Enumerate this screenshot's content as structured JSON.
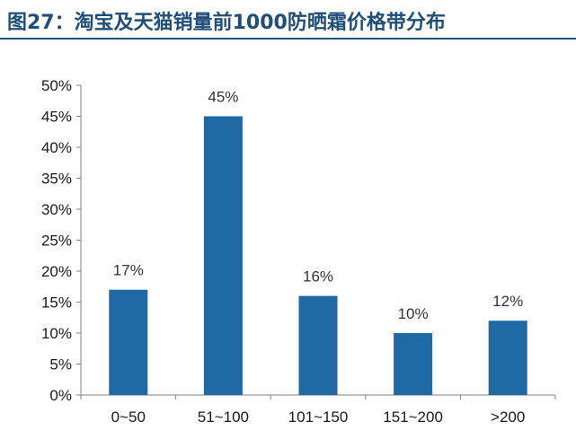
{
  "figure": {
    "title": "图27：淘宝及天猫销量前1000防晒霜价格带分布"
  },
  "chart_data": {
    "type": "bar",
    "title": "",
    "xlabel": "",
    "ylabel": "",
    "categories": [
      "0~50",
      "51~100",
      "101~150",
      "151~200",
      ">200"
    ],
    "values": [
      17,
      45,
      16,
      10,
      12
    ],
    "data_labels": [
      "17%",
      "45%",
      "16%",
      "10%",
      "12%"
    ],
    "ylim": [
      0,
      50
    ],
    "y_ticks": [
      0,
      5,
      10,
      15,
      20,
      25,
      30,
      35,
      40,
      45,
      50
    ],
    "y_tick_labels": [
      "0%",
      "5%",
      "10%",
      "15%",
      "20%",
      "25%",
      "30%",
      "35%",
      "40%",
      "45%",
      "50%"
    ],
    "bar_color": "#1f6aa5",
    "grid": false,
    "legend": "none"
  }
}
